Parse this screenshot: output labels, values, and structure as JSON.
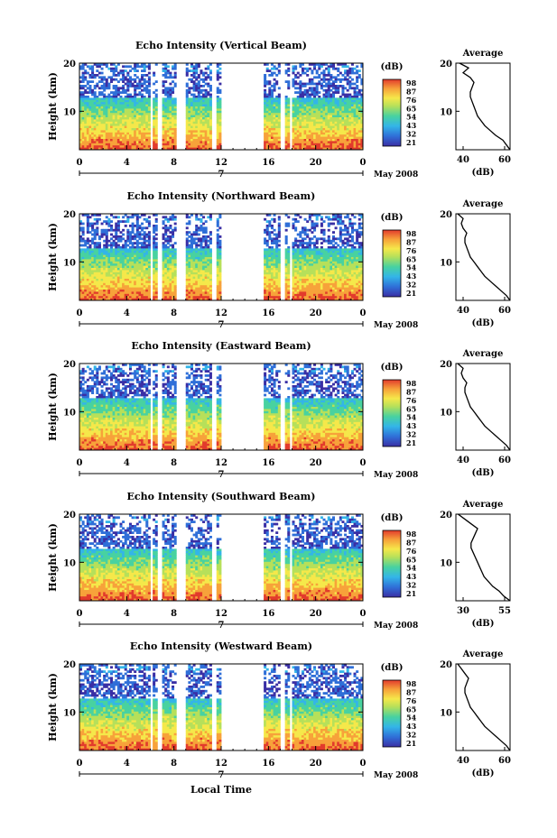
{
  "figure": {
    "x_axis_label": "Local Time",
    "y_axis_label": "Height (km)",
    "date_label": "May 2008",
    "day_label": "7",
    "colorbar_title": "(dB)",
    "colorbar_ticks": [
      "98",
      "87",
      "76",
      "65",
      "54",
      "43",
      "32",
      "21"
    ],
    "profile_title": "Average",
    "profile_xlabel": "(dB)"
  },
  "chart_data": [
    {
      "type": "heatmap",
      "title": "Echo Intensity (Vertical Beam)",
      "ylabel": "Height (km)",
      "x_ticks": [
        "0",
        "4",
        "8",
        "12",
        "16",
        "20",
        "0"
      ],
      "y_ticks": [
        "20",
        "10"
      ],
      "xlim": [
        0,
        24
      ],
      "ylim": [
        2,
        20
      ],
      "profile": {
        "xlim": [
          30,
          60
        ],
        "x_ticks": [
          "40",
          "60"
        ],
        "y_ticks": [
          "20",
          "10"
        ],
        "heights": [
          2,
          3,
          4,
          5,
          6,
          7,
          8,
          9,
          10,
          11,
          12,
          13,
          14,
          15,
          16,
          17,
          18,
          19,
          20
        ],
        "values": [
          60,
          58,
          56,
          52,
          49,
          46,
          44,
          42,
          41,
          40,
          39,
          38,
          38,
          39,
          40,
          38,
          34,
          37,
          32
        ]
      }
    },
    {
      "type": "heatmap",
      "title": "Echo Intensity (Northward Beam)",
      "ylabel": "Height (km)",
      "x_ticks": [
        "0",
        "4",
        "8",
        "12",
        "16",
        "20",
        "0"
      ],
      "y_ticks": [
        "20",
        "10"
      ],
      "xlim": [
        0,
        24
      ],
      "ylim": [
        2,
        20
      ],
      "profile": {
        "xlim": [
          30,
          60
        ],
        "x_ticks": [
          "40",
          "60"
        ],
        "y_ticks": [
          "20",
          "10"
        ],
        "heights": [
          2,
          3,
          4,
          5,
          6,
          7,
          8,
          9,
          10,
          11,
          12,
          13,
          14,
          15,
          16,
          17,
          18,
          19,
          20
        ],
        "values": [
          60,
          58,
          55,
          52,
          49,
          46,
          44,
          42,
          40,
          38,
          37,
          36,
          35,
          35,
          36,
          34,
          33,
          34,
          31
        ]
      }
    },
    {
      "type": "heatmap",
      "title": "Echo Intensity (Eastward Beam)",
      "ylabel": "Height (km)",
      "x_ticks": [
        "0",
        "4",
        "8",
        "12",
        "16",
        "20",
        "0"
      ],
      "y_ticks": [
        "20",
        "10"
      ],
      "xlim": [
        0,
        24
      ],
      "ylim": [
        2,
        20
      ],
      "profile": {
        "xlim": [
          30,
          60
        ],
        "x_ticks": [
          "40",
          "60"
        ],
        "y_ticks": [
          "20",
          "10"
        ],
        "heights": [
          2,
          3,
          4,
          5,
          6,
          7,
          8,
          9,
          10,
          11,
          12,
          13,
          14,
          15,
          16,
          17,
          18,
          19,
          20
        ],
        "values": [
          60,
          58,
          55,
          52,
          49,
          46,
          44,
          42,
          40,
          38,
          37,
          36,
          35,
          35,
          36,
          34,
          33,
          34,
          31
        ]
      }
    },
    {
      "type": "heatmap",
      "title": "Echo Intensity (Southward Beam)",
      "ylabel": "Height (km)",
      "x_ticks": [
        "0",
        "4",
        "8",
        "12",
        "16",
        "20",
        "0"
      ],
      "y_ticks": [
        "20",
        "10"
      ],
      "xlim": [
        0,
        24
      ],
      "ylim": [
        2,
        20
      ],
      "profile": {
        "xlim": [
          30,
          55
        ],
        "x_ticks": [
          "30",
          "55"
        ],
        "y_ticks": [
          "20",
          "10"
        ],
        "heights": [
          2,
          3,
          4,
          5,
          6,
          7,
          8,
          9,
          10,
          11,
          12,
          13,
          14,
          15,
          16,
          17,
          18,
          19,
          20
        ],
        "values": [
          55,
          52,
          50,
          47,
          45,
          43,
          42,
          41,
          40,
          39,
          38,
          37,
          37,
          38,
          39,
          40,
          37,
          34,
          31
        ]
      }
    },
    {
      "type": "heatmap",
      "title": "Echo Intensity (Westward Beam)",
      "ylabel": "Height (km)",
      "x_ticks": [
        "0",
        "4",
        "8",
        "12",
        "16",
        "20",
        "0"
      ],
      "y_ticks": [
        "20",
        "10"
      ],
      "xlim": [
        0,
        24
      ],
      "ylim": [
        2,
        20
      ],
      "profile": {
        "xlim": [
          30,
          60
        ],
        "x_ticks": [
          "40",
          "60"
        ],
        "y_ticks": [
          "20",
          "10"
        ],
        "heights": [
          2,
          3,
          4,
          5,
          6,
          7,
          8,
          9,
          10,
          11,
          12,
          13,
          14,
          15,
          16,
          17,
          18,
          19,
          20
        ],
        "values": [
          60,
          58,
          55,
          52,
          49,
          46,
          44,
          42,
          40,
          38,
          37,
          36,
          35,
          35,
          36,
          37,
          35,
          33,
          31
        ]
      }
    }
  ],
  "gaps_hours": [
    [
      6.0,
      6.2
    ],
    [
      6.7,
      6.9
    ],
    [
      8.3,
      9.0
    ],
    [
      11.3,
      11.5
    ],
    [
      12.0,
      15.5
    ],
    [
      17.0,
      17.4
    ],
    [
      17.9,
      18.0
    ]
  ],
  "colors": {
    "scale": [
      "#3a2fa5",
      "#2f6fd8",
      "#33b5e8",
      "#48d2a0",
      "#b6e05a",
      "#f5e84a",
      "#f7a23a",
      "#e23b2c"
    ]
  }
}
